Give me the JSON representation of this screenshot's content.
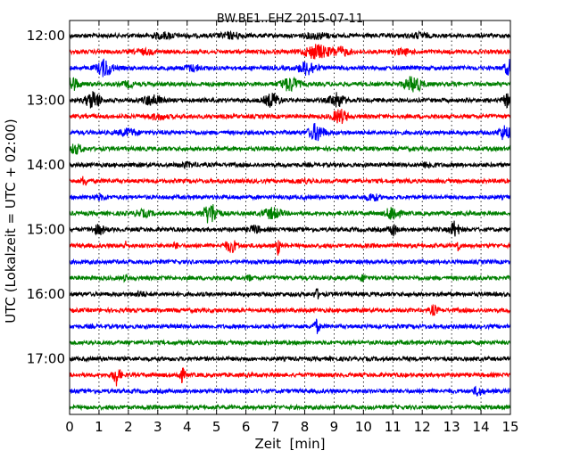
{
  "chart_data": {
    "type": "line",
    "title": "BW.BE1..EHZ 2015-07-11",
    "xlabel": "Zeit  [min]",
    "ylabel": "UTC (Lokalzeit = UTC + 02:00)",
    "xlim": [
      0,
      15
    ],
    "xticks": [
      0,
      1,
      2,
      3,
      4,
      5,
      6,
      7,
      8,
      9,
      10,
      11,
      12,
      13,
      14,
      15
    ],
    "ytick_labels": [
      "12:00",
      "13:00",
      "14:00",
      "15:00",
      "16:00",
      "17:00"
    ],
    "ytick_rows": [
      0,
      4,
      8,
      12,
      16,
      20
    ],
    "grid": "vertical dotted at each minute",
    "color_cycle": [
      "#000000",
      "#ff0000",
      "#0000ff",
      "#008000"
    ],
    "row_interval_minutes": 15,
    "rows": [
      {
        "start": "12:00",
        "color": "#000000",
        "bursts": [
          {
            "t": 3.2,
            "a": 0.3,
            "w": 0.4
          },
          {
            "t": 5.5,
            "a": 0.3,
            "w": 0.4
          },
          {
            "t": 8.4,
            "a": 0.3,
            "w": 0.4
          },
          {
            "t": 11.9,
            "a": 0.25,
            "w": 0.3
          }
        ]
      },
      {
        "start": "12:15",
        "color": "#ff0000",
        "bursts": [
          {
            "t": 8.4,
            "a": 0.8,
            "w": 0.4
          },
          {
            "t": 9.2,
            "a": 0.5,
            "w": 0.3
          },
          {
            "t": 2.5,
            "a": 0.25,
            "w": 0.3
          },
          {
            "t": 11.3,
            "a": 0.25,
            "w": 0.3
          }
        ]
      },
      {
        "start": "12:30",
        "color": "#0000ff",
        "bursts": [
          {
            "t": 1.2,
            "a": 1.0,
            "w": 0.25
          },
          {
            "t": 8.1,
            "a": 0.8,
            "w": 0.3
          },
          {
            "t": 15.0,
            "a": 0.9,
            "w": 0.2
          },
          {
            "t": 4.2,
            "a": 0.3,
            "w": 0.3
          }
        ]
      },
      {
        "start": "12:45",
        "color": "#008000",
        "bursts": [
          {
            "t": 0.1,
            "a": 0.8,
            "w": 0.2
          },
          {
            "t": 7.5,
            "a": 0.8,
            "w": 0.3
          },
          {
            "t": 11.7,
            "a": 0.9,
            "w": 0.3
          },
          {
            "t": 2.0,
            "a": 0.3,
            "w": 0.2
          }
        ]
      },
      {
        "start": "13:00",
        "color": "#000000",
        "bursts": [
          {
            "t": 0.8,
            "a": 1.0,
            "w": 0.25
          },
          {
            "t": 2.8,
            "a": 0.6,
            "w": 0.3
          },
          {
            "t": 6.9,
            "a": 0.8,
            "w": 0.25
          },
          {
            "t": 9.1,
            "a": 0.8,
            "w": 0.25
          },
          {
            "t": 14.9,
            "a": 0.7,
            "w": 0.15
          }
        ]
      },
      {
        "start": "13:15",
        "color": "#ff0000",
        "bursts": [
          {
            "t": 9.2,
            "a": 0.8,
            "w": 0.25
          },
          {
            "t": 3.0,
            "a": 0.25,
            "w": 0.3
          }
        ]
      },
      {
        "start": "13:30",
        "color": "#0000ff",
        "bursts": [
          {
            "t": 8.4,
            "a": 1.0,
            "w": 0.25
          },
          {
            "t": 2.0,
            "a": 0.4,
            "w": 0.3
          },
          {
            "t": 14.8,
            "a": 0.8,
            "w": 0.2
          }
        ]
      },
      {
        "start": "13:45",
        "color": "#008000",
        "bursts": [
          {
            "t": 0.2,
            "a": 0.5,
            "w": 0.25
          }
        ]
      },
      {
        "start": "14:00",
        "color": "#000000",
        "bursts": [
          {
            "t": 12.2,
            "a": 0.3,
            "w": 0.2
          },
          {
            "t": 4.0,
            "a": 0.2,
            "w": 0.3
          }
        ]
      },
      {
        "start": "14:15",
        "color": "#ff0000",
        "bursts": [
          {
            "t": 0.5,
            "a": 0.6,
            "w": 0.08
          },
          {
            "t": 8.0,
            "a": 0.2,
            "w": 0.3
          }
        ]
      },
      {
        "start": "14:30",
        "color": "#0000ff",
        "bursts": [
          {
            "t": 10.3,
            "a": 0.4,
            "w": 0.2
          },
          {
            "t": 1.0,
            "a": 0.2,
            "w": 0.3
          }
        ]
      },
      {
        "start": "14:45",
        "color": "#008000",
        "bursts": [
          {
            "t": 4.8,
            "a": 1.2,
            "w": 0.25
          },
          {
            "t": 6.9,
            "a": 0.6,
            "w": 0.3
          },
          {
            "t": 11.0,
            "a": 0.9,
            "w": 0.2
          },
          {
            "t": 2.5,
            "a": 0.3,
            "w": 0.3
          }
        ]
      },
      {
        "start": "15:00",
        "color": "#000000",
        "bursts": [
          {
            "t": 13.1,
            "a": 0.9,
            "w": 0.15
          },
          {
            "t": 11.0,
            "a": 0.7,
            "w": 0.12
          },
          {
            "t": 1.0,
            "a": 0.5,
            "w": 0.2
          },
          {
            "t": 6.3,
            "a": 0.4,
            "w": 0.2
          }
        ]
      },
      {
        "start": "15:15",
        "color": "#ff0000",
        "bursts": [
          {
            "t": 5.5,
            "a": 0.7,
            "w": 0.2
          },
          {
            "t": 7.1,
            "a": 1.0,
            "w": 0.06
          },
          {
            "t": 13.2,
            "a": 0.7,
            "w": 0.06
          },
          {
            "t": 1.9,
            "a": 0.4,
            "w": 0.06
          },
          {
            "t": 3.6,
            "a": 0.4,
            "w": 0.06
          }
        ]
      },
      {
        "start": "15:30",
        "color": "#0000ff",
        "bursts": []
      },
      {
        "start": "15:45",
        "color": "#008000",
        "bursts": [
          {
            "t": 1.9,
            "a": 0.4,
            "w": 0.06
          },
          {
            "t": 6.1,
            "a": 0.4,
            "w": 0.06
          },
          {
            "t": 10.0,
            "a": 0.3,
            "w": 0.1
          }
        ]
      },
      {
        "start": "16:00",
        "color": "#000000",
        "bursts": [
          {
            "t": 8.4,
            "a": 0.6,
            "w": 0.08
          },
          {
            "t": 2.4,
            "a": 0.3,
            "w": 0.15
          }
        ]
      },
      {
        "start": "16:15",
        "color": "#ff0000",
        "bursts": [
          {
            "t": 12.4,
            "a": 0.6,
            "w": 0.1
          }
        ]
      },
      {
        "start": "16:30",
        "color": "#0000ff",
        "bursts": [
          {
            "t": 8.4,
            "a": 0.8,
            "w": 0.1
          }
        ]
      },
      {
        "start": "16:45",
        "color": "#008000",
        "bursts": []
      },
      {
        "start": "17:00",
        "color": "#000000",
        "bursts": []
      },
      {
        "start": "17:15",
        "color": "#ff0000",
        "bursts": [
          {
            "t": 1.6,
            "a": 1.2,
            "w": 0.12
          },
          {
            "t": 3.8,
            "a": 0.8,
            "w": 0.12
          }
        ]
      },
      {
        "start": "17:30",
        "color": "#0000ff",
        "bursts": [
          {
            "t": 13.9,
            "a": 0.5,
            "w": 0.15
          }
        ]
      },
      {
        "start": "17:45",
        "color": "#008000",
        "bursts": []
      }
    ]
  }
}
